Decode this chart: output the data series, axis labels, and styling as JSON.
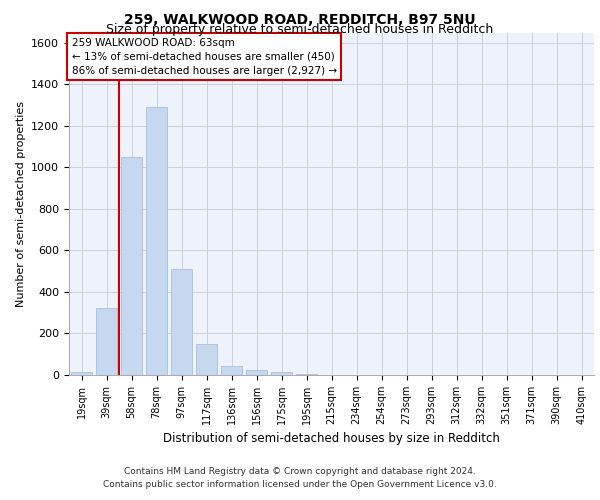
{
  "title1": "259, WALKWOOD ROAD, REDDITCH, B97 5NU",
  "title2": "Size of property relative to semi-detached houses in Redditch",
  "xlabel": "Distribution of semi-detached houses by size in Redditch",
  "ylabel": "Number of semi-detached properties",
  "categories": [
    "19sqm",
    "39sqm",
    "58sqm",
    "78sqm",
    "97sqm",
    "117sqm",
    "136sqm",
    "156sqm",
    "175sqm",
    "195sqm",
    "215sqm",
    "234sqm",
    "254sqm",
    "273sqm",
    "293sqm",
    "312sqm",
    "332sqm",
    "351sqm",
    "371sqm",
    "390sqm",
    "410sqm"
  ],
  "values": [
    15,
    325,
    1050,
    1290,
    510,
    150,
    45,
    25,
    15,
    5,
    0,
    0,
    0,
    0,
    0,
    0,
    0,
    0,
    0,
    0,
    0
  ],
  "bar_color": "#c5d8f0",
  "bar_edge_color": "#a0b8d8",
  "annotation_text": "259 WALKWOOD ROAD: 63sqm\n← 13% of semi-detached houses are smaller (450)\n86% of semi-detached houses are larger (2,927) →",
  "vline_x": 1.5,
  "vline_color": "#cc0000",
  "annotation_box_color": "#ffffff",
  "annotation_box_edge": "#cc0000",
  "ylim": [
    0,
    1650
  ],
  "yticks": [
    0,
    200,
    400,
    600,
    800,
    1000,
    1200,
    1400,
    1600
  ],
  "footer1": "Contains HM Land Registry data © Crown copyright and database right 2024.",
  "footer2": "Contains public sector information licensed under the Open Government Licence v3.0.",
  "plot_bg_color": "#eef2fa",
  "grid_color": "#c8d0e0"
}
